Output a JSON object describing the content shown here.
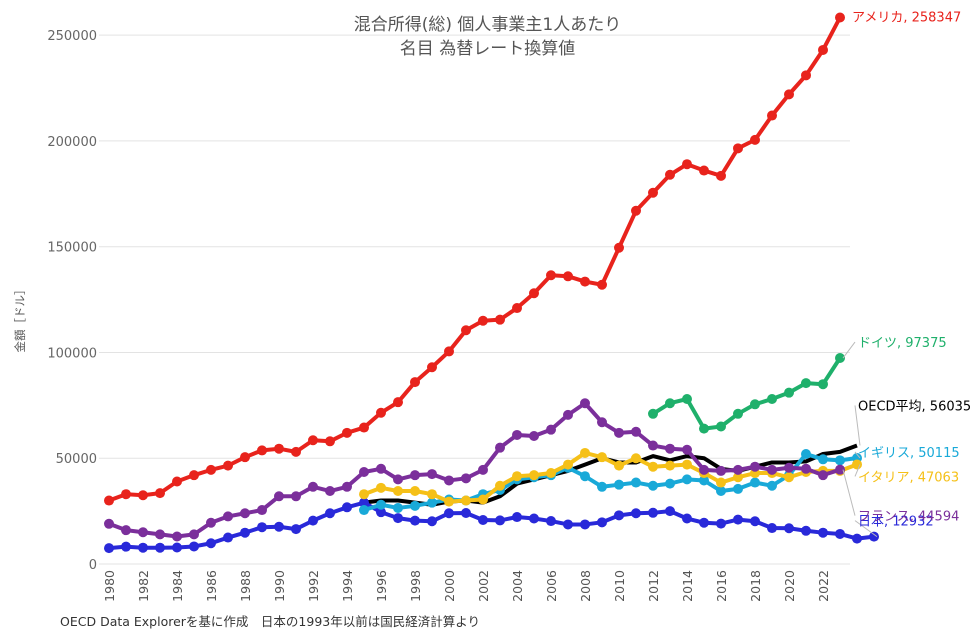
{
  "chart_data": {
    "type": "line",
    "title": "混合所得(総) 個人事業主1人あたり",
    "subtitle": "名目 為替レート換算値",
    "ylabel": "金額［ドル］",
    "xlabel": "",
    "ylim": [
      0,
      260000
    ],
    "yticks": [
      0,
      50000,
      100000,
      150000,
      200000,
      250000
    ],
    "ytick_labels": [
      "0",
      "50000",
      "100000",
      "150000",
      "200000",
      "250000"
    ],
    "xlim": [
      1980,
      2023
    ],
    "xticks": [
      1980,
      1982,
      1984,
      1986,
      1988,
      1990,
      1992,
      1994,
      1996,
      1998,
      2000,
      2002,
      2004,
      2006,
      2008,
      2010,
      2012,
      2014,
      2016,
      2018,
      2020,
      2022
    ],
    "series": [
      {
        "name": "日本",
        "label": "日本, 12932",
        "color": "#2929d9",
        "marker": true,
        "start": 1980,
        "values": [
          7500,
          8200,
          7700,
          7700,
          7800,
          8300,
          9800,
          12500,
          14800,
          17400,
          17600,
          16500,
          20500,
          24000,
          26800,
          29000,
          24500,
          21700,
          20500,
          20200,
          24000,
          24100,
          20800,
          20600,
          22200,
          21500,
          20300,
          18700,
          18700,
          19700,
          23000,
          24000,
          24200,
          25000,
          21500,
          19500,
          19100,
          21000,
          20200,
          17000,
          16900,
          15700,
          14800,
          14200,
          12000,
          12932
        ]
      },
      {
        "name": "OECD平均",
        "label": "OECD平均, 56035",
        "color": "#000000",
        "marker": false,
        "start": 1995,
        "values": [
          29000,
          30000,
          30000,
          29000,
          28000,
          29500,
          30000,
          29000,
          32000,
          38000,
          40000,
          42000,
          44000,
          47000,
          50000,
          48000,
          48000,
          51000,
          49000,
          51000,
          50000,
          45000,
          44000,
          46000,
          48000,
          48000,
          48500,
          52000,
          53000,
          56035
        ]
      },
      {
        "name": "アメリカ",
        "label": "アメリカ, 258347",
        "color": "#e8231c",
        "marker": true,
        "start": 1980,
        "values": [
          30000,
          33000,
          32500,
          33500,
          39000,
          42000,
          44500,
          46500,
          50500,
          53700,
          54500,
          53000,
          58500,
          58000,
          62000,
          64500,
          71500,
          76500,
          86000,
          93000,
          100500,
          110500,
          115000,
          115500,
          121000,
          128000,
          136500,
          136000,
          133500,
          132000,
          149500,
          167000,
          175500,
          184000,
          189000,
          186000,
          183500,
          196500,
          200500,
          212000,
          222000,
          231000,
          243000,
          258347
        ]
      },
      {
        "name": "ドイツ",
        "label": "ドイツ, 97375",
        "color": "#1fb06b",
        "marker": true,
        "start": 2012,
        "values": [
          71000,
          76000,
          78000,
          64000,
          65000,
          71000,
          75500,
          78000,
          81000,
          85500,
          85000,
          97375
        ]
      },
      {
        "name": "イタリア",
        "label": "イタリア, 47063",
        "color": "#f5c018",
        "marker": true,
        "start": 1995,
        "values": [
          33000,
          36000,
          34500,
          34500,
          33000,
          29500,
          30000,
          30500,
          37000,
          41500,
          42000,
          43000,
          47000,
          52500,
          50500,
          46500,
          50000,
          46000,
          46500,
          47000,
          43000,
          38500,
          41000,
          43000,
          43000,
          41000,
          43500,
          44000,
          44000,
          47063
        ]
      },
      {
        "name": "イギリス",
        "label": "イギリス, 50115",
        "color": "#19a9d8",
        "marker": true,
        "start": 1995,
        "values": [
          25500,
          28000,
          26500,
          27500,
          29000,
          30500,
          30000,
          33000,
          35000,
          40000,
          41000,
          42000,
          45500,
          41500,
          36500,
          37500,
          38500,
          37000,
          38000,
          40000,
          39500,
          34500,
          35500,
          38500,
          37000,
          42000,
          52000,
          49500,
          49000,
          50115
        ]
      },
      {
        "name": "フランス",
        "label": "フランス, 44594",
        "color": "#7b2f9b",
        "marker": true,
        "start": 1980,
        "values": [
          19000,
          16000,
          15000,
          14000,
          13000,
          14000,
          19500,
          22500,
          24000,
          25500,
          32000,
          32000,
          36500,
          34500,
          36500,
          43500,
          45000,
          40000,
          42000,
          42500,
          39500,
          40500,
          44500,
          55000,
          61000,
          60500,
          63500,
          70500,
          76000,
          67000,
          62000,
          62500,
          56000,
          54500,
          54000,
          44500,
          44000,
          44500,
          46000,
          44500,
          45500,
          45000,
          42000,
          44594
        ]
      }
    ]
  },
  "footer": "OECD Data Explorerを基に作成　日本の1993年以前は国民経済計算より"
}
